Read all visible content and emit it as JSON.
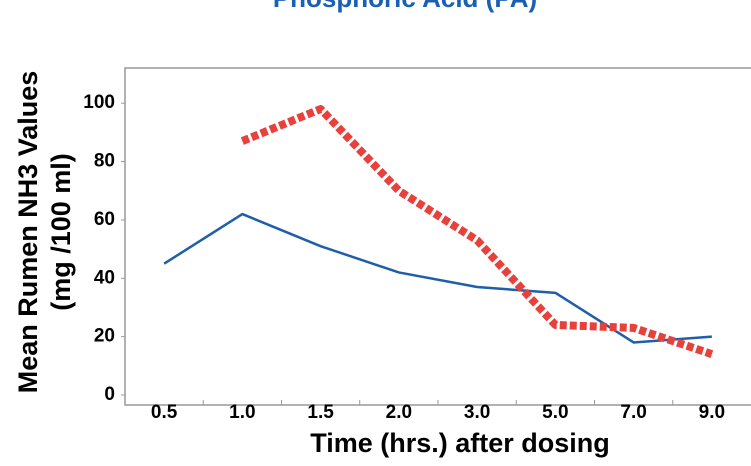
{
  "chart_data": {
    "type": "line",
    "title": "Phosphoric Acid (PA)",
    "y_label": [
      "Mean Rumen NH3 Values",
      "(mg /100 ml)"
    ],
    "x_label": "Time (hrs.) after dosing",
    "categories": [
      "0.5",
      "1.0",
      "1.5",
      "2.0",
      "3.0",
      "5.0",
      "7.0",
      "9.0"
    ],
    "series": [
      {
        "color": "#1f5ea8",
        "style": "solid",
        "values": [
          45,
          62,
          51,
          42,
          37,
          35,
          18,
          20
        ]
      },
      {
        "color": "#e8413c",
        "style": "dotted",
        "values": [
          null,
          87,
          98,
          70,
          53,
          24,
          23,
          14
        ]
      }
    ],
    "ylim": [
      0,
      110
    ],
    "yticks": [
      0,
      20,
      40,
      60,
      80,
      100
    ]
  }
}
